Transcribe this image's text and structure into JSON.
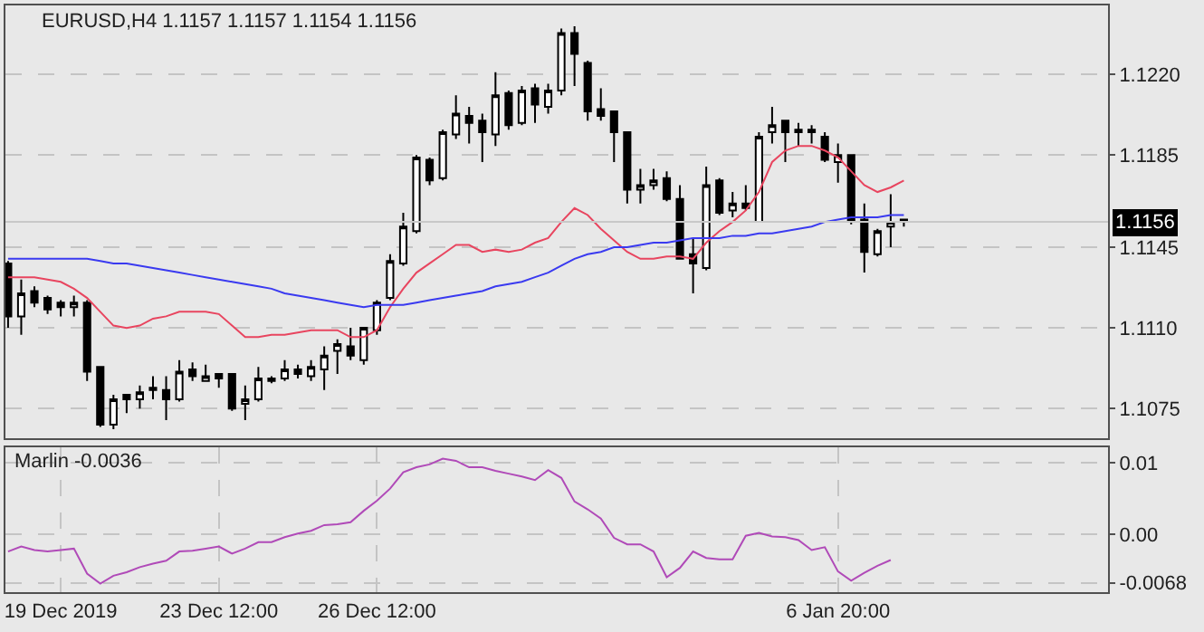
{
  "chart_data": [
    {
      "type": "candlestick",
      "title": "EURUSD,H4 1.1157 1.1157 1.1154 1.1156",
      "categories": [
        null,
        null,
        null,
        null,
        null,
        null,
        null,
        null,
        null,
        null,
        null,
        null,
        null,
        null,
        null,
        null,
        null,
        null,
        null,
        null,
        null,
        null,
        null,
        null,
        null,
        null,
        null,
        null,
        null,
        null,
        null,
        null,
        null,
        null,
        null,
        null,
        null,
        null,
        null,
        null,
        null,
        null,
        null,
        null,
        null,
        null,
        null,
        null,
        null,
        null,
        null,
        null,
        null,
        null,
        null,
        null,
        null,
        null,
        null,
        null,
        null,
        null,
        null,
        null,
        null,
        null,
        null,
        null,
        null
      ],
      "ohlc": [
        [
          1.1138,
          1.1139,
          1.111,
          1.1115
        ],
        [
          1.1115,
          1.1131,
          1.1107,
          1.1125
        ],
        [
          1.1126,
          1.1128,
          1.1119,
          1.1121
        ],
        [
          1.1123,
          1.1124,
          1.1116,
          1.1118
        ],
        [
          1.1121,
          1.1122,
          1.1115,
          1.1119
        ],
        [
          1.1119,
          1.1124,
          1.1115,
          1.1121
        ],
        [
          1.1121,
          1.1122,
          1.1087,
          1.1091
        ],
        [
          1.1093,
          1.1093,
          1.1067,
          1.1068
        ],
        [
          1.1068,
          1.1081,
          1.1066,
          1.1079
        ],
        [
          1.1081,
          1.1081,
          1.1073,
          1.1079
        ],
        [
          1.1079,
          1.1085,
          1.1075,
          1.1082
        ],
        [
          1.1083,
          1.1089,
          1.1079,
          1.1084
        ],
        [
          1.1083,
          1.1089,
          1.107,
          1.1079
        ],
        [
          1.1079,
          1.1096,
          1.1078,
          1.1091
        ],
        [
          1.1092,
          1.1095,
          1.1087,
          1.1089
        ],
        [
          1.1087,
          1.1094,
          1.1087,
          1.1089
        ],
        [
          1.109,
          1.109,
          1.1084,
          1.1088
        ],
        [
          1.109,
          1.109,
          1.1074,
          1.1075
        ],
        [
          1.1077,
          1.1085,
          1.107,
          1.1079
        ],
        [
          1.1079,
          1.1093,
          1.1078,
          1.1088
        ],
        [
          1.1087,
          1.1089,
          1.1086,
          1.1088
        ],
        [
          1.1088,
          1.1096,
          1.1087,
          1.1092
        ],
        [
          1.1092,
          1.1094,
          1.1088,
          1.109
        ],
        [
          1.1089,
          1.1096,
          1.1087,
          1.1093
        ],
        [
          1.1092,
          1.1102,
          1.1083,
          1.1098
        ],
        [
          1.11,
          1.1105,
          1.109,
          1.1103
        ],
        [
          1.1102,
          1.111,
          1.1096,
          1.1098
        ],
        [
          1.1096,
          1.111,
          1.1094,
          1.111
        ],
        [
          1.1109,
          1.1122,
          1.1107,
          1.1121
        ],
        [
          1.1123,
          1.1142,
          1.1122,
          1.1139
        ],
        [
          1.1138,
          1.116,
          1.1137,
          1.1154
        ],
        [
          1.1152,
          1.1185,
          1.1151,
          1.1184
        ],
        [
          1.1183,
          1.1184,
          1.1172,
          1.1174
        ],
        [
          1.1175,
          1.1196,
          1.1174,
          1.1195
        ],
        [
          1.1194,
          1.1211,
          1.1192,
          1.1203
        ],
        [
          1.1202,
          1.1206,
          1.119,
          1.1199
        ],
        [
          1.12,
          1.1203,
          1.1182,
          1.1195
        ],
        [
          1.1194,
          1.1221,
          1.1189,
          1.1211
        ],
        [
          1.1212,
          1.1213,
          1.1196,
          1.1198
        ],
        [
          1.1199,
          1.1215,
          1.1198,
          1.1213
        ],
        [
          1.1214,
          1.1216,
          1.1199,
          1.1207
        ],
        [
          1.1206,
          1.1216,
          1.1203,
          1.1213
        ],
        [
          1.1213,
          1.124,
          1.1211,
          1.1238
        ],
        [
          1.1238,
          1.1241,
          1.1215,
          1.1229
        ],
        [
          1.1225,
          1.1226,
          1.12,
          1.1204
        ],
        [
          1.1205,
          1.1214,
          1.12,
          1.1202
        ],
        [
          1.1204,
          1.1204,
          1.1182,
          1.1195
        ],
        [
          1.1195,
          1.1195,
          1.1164,
          1.117
        ],
        [
          1.117,
          1.1179,
          1.1164,
          1.1172
        ],
        [
          1.1172,
          1.1179,
          1.117,
          1.1174
        ],
        [
          1.1175,
          1.1178,
          1.1165,
          1.1166
        ],
        [
          1.1166,
          1.1172,
          1.114,
          1.114
        ],
        [
          1.1142,
          1.1149,
          1.1125,
          1.1138
        ],
        [
          1.1136,
          1.118,
          1.1135,
          1.1172
        ],
        [
          1.1174,
          1.1175,
          1.1159,
          1.116
        ],
        [
          1.1161,
          1.1169,
          1.1158,
          1.1164
        ],
        [
          1.1164,
          1.1172,
          1.1161,
          1.1162
        ],
        [
          1.1156,
          1.1195,
          1.1156,
          1.1193
        ],
        [
          1.1195,
          1.1206,
          1.119,
          1.1198
        ],
        [
          1.12,
          1.12,
          1.1182,
          1.1195
        ],
        [
          1.1196,
          1.1199,
          1.1189,
          1.1195
        ],
        [
          1.1196,
          1.1198,
          1.119,
          1.1195
        ],
        [
          1.1193,
          1.1195,
          1.1182,
          1.1183
        ],
        [
          1.1182,
          1.119,
          1.1173,
          1.1185
        ],
        [
          1.1185,
          1.1185,
          1.1155,
          1.1156
        ],
        [
          1.1157,
          1.1164,
          1.1134,
          1.1143
        ],
        [
          1.1142,
          1.1153,
          1.1141,
          1.1152
        ],
        [
          1.1154,
          1.1168,
          1.1145,
          1.1156
        ],
        [
          1.1157,
          1.1157,
          1.1154,
          1.1156
        ]
      ],
      "series": [
        {
          "type": "line",
          "color": "#e8455f",
          "values": [
            1.1132,
            1.1132,
            1.1132,
            1.1131,
            1.113,
            1.1127,
            1.1123,
            1.1117,
            1.1111,
            1.111,
            1.1111,
            1.1114,
            1.1115,
            1.1117,
            1.1117,
            1.1117,
            1.1116,
            1.1111,
            1.1106,
            1.1106,
            1.1107,
            1.1107,
            1.1108,
            1.1109,
            1.1109,
            1.1109,
            1.1106,
            1.1106,
            1.1109,
            1.1119,
            1.1127,
            1.1134,
            1.1138,
            1.1142,
            1.1146,
            1.1146,
            1.1143,
            1.1144,
            1.1143,
            1.1144,
            1.1147,
            1.1149,
            1.1156,
            1.1162,
            1.1159,
            1.1153,
            1.1148,
            1.1143,
            1.114,
            1.114,
            1.1141,
            1.1141,
            1.114,
            1.1147,
            1.1152,
            1.1156,
            1.1161,
            1.1169,
            1.1182,
            1.1187,
            1.1189,
            1.1189,
            1.1187,
            1.1184,
            1.1178,
            1.1172,
            1.1169,
            1.1171,
            1.1174
          ]
        },
        {
          "type": "line",
          "color": "#3a3af0",
          "values": [
            1.114,
            1.114,
            1.114,
            1.114,
            1.114,
            1.114,
            1.114,
            1.1139,
            1.1138,
            1.1138,
            1.1137,
            1.1136,
            1.1135,
            1.1134,
            1.1133,
            1.1132,
            1.1131,
            1.113,
            1.1129,
            1.1128,
            1.1127,
            1.1125,
            1.1124,
            1.1123,
            1.1122,
            1.1121,
            1.112,
            1.1119,
            1.112,
            1.112,
            1.112,
            1.1121,
            1.1122,
            1.1123,
            1.1124,
            1.1125,
            1.1126,
            1.1128,
            1.1129,
            1.113,
            1.1132,
            1.1134,
            1.1137,
            1.114,
            1.1142,
            1.1143,
            1.1145,
            1.1145,
            1.1146,
            1.1147,
            1.1147,
            1.1148,
            1.1149,
            1.1149,
            1.1149,
            1.115,
            1.115,
            1.1151,
            1.1151,
            1.1152,
            1.1153,
            1.1154,
            1.1156,
            1.1157,
            1.1158,
            1.1158,
            1.1158,
            1.1159,
            1.1159
          ]
        }
      ],
      "ylim": [
        1.1062,
        1.125
      ],
      "yticks": [
        {
          "value": 1.122,
          "label": "1.1220"
        },
        1.1185,
        1.1145,
        {
          "value": 1.111,
          "label": "1.1110"
        },
        1.1075
      ],
      "ref_lines": [
        {
          "axis": "y",
          "value": 1.1156,
          "label": "1.1156",
          "color": "#c8c8c8"
        }
      ],
      "grid": true,
      "tick_labels": "y"
    },
    {
      "type": "line",
      "title": "Marlin -0.0036",
      "categories": [
        null,
        null,
        null,
        null,
        "19 Dec 2019",
        null,
        null,
        null,
        null,
        null,
        null,
        null,
        null,
        null,
        null,
        null,
        "23 Dec 12:00",
        null,
        null,
        null,
        null,
        null,
        null,
        null,
        null,
        null,
        null,
        null,
        "26 Dec 12:00",
        null,
        null,
        null,
        null,
        null,
        null,
        null,
        null,
        null,
        null,
        null,
        null,
        null,
        null,
        null,
        null,
        null,
        null,
        null,
        null,
        null,
        null,
        null,
        null,
        null,
        null,
        null,
        null,
        null,
        null,
        null,
        null,
        null,
        null,
        "6 Jan 20:00",
        null,
        null,
        null,
        null,
        null
      ],
      "series": [
        {
          "color": "#b04ab8",
          "values": [
            -0.0024,
            -0.0017,
            -0.0022,
            -0.0024,
            -0.0022,
            -0.002,
            -0.0055,
            -0.0069,
            -0.0058,
            -0.0053,
            -0.0046,
            -0.0041,
            -0.0037,
            -0.0024,
            -0.0023,
            -0.002,
            -0.0017,
            -0.0027,
            -0.002,
            -0.0011,
            -0.0011,
            -0.0004,
            0.0001,
            0.0005,
            0.0013,
            0.0014,
            0.0017,
            0.0033,
            0.0047,
            0.0064,
            0.0087,
            0.0094,
            0.0098,
            0.0106,
            0.0103,
            0.0094,
            0.0094,
            0.0089,
            0.0085,
            0.0081,
            0.0076,
            0.009,
            0.0079,
            0.0046,
            0.0035,
            0.0022,
            -0.0005,
            -0.0014,
            -0.0014,
            -0.0024,
            -0.006,
            -0.0047,
            -0.0024,
            -0.0033,
            -0.0035,
            -0.0035,
            -0.0002,
            0.0002,
            -0.0003,
            -0.0004,
            -0.0008,
            -0.0022,
            -0.0018,
            -0.0052,
            -0.0065,
            -0.0054,
            -0.0044,
            -0.0036,
            null
          ]
        }
      ],
      "ylim": [
        -0.0081,
        0.0122
      ],
      "yticks": [
        0.01,
        {
          "value": 0,
          "label": "0.00"
        },
        -0.0068
      ],
      "grid": true
    }
  ]
}
